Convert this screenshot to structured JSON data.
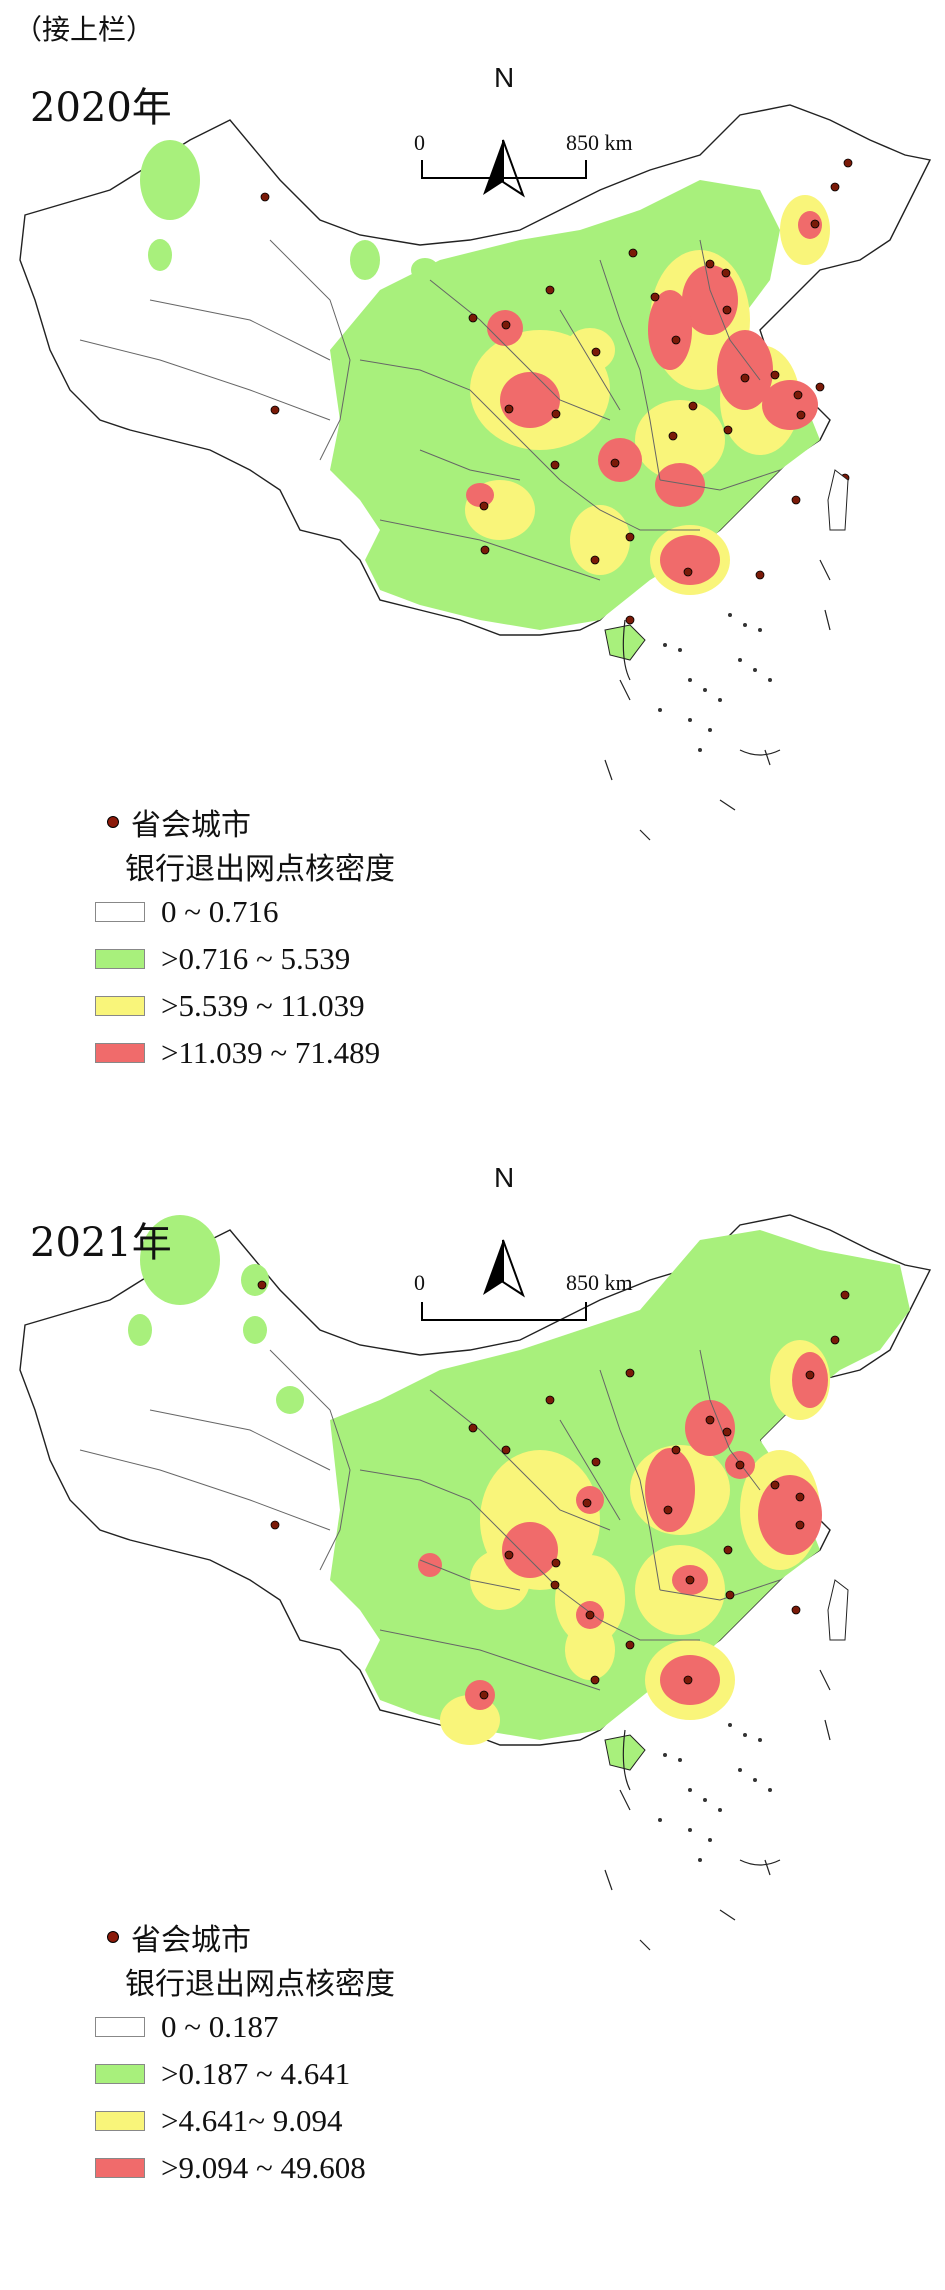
{
  "continuation_note": "（接上栏）",
  "panels": [
    {
      "year_label": "2020年",
      "north_label": "N",
      "scale": {
        "start": "0",
        "end": "850 km"
      },
      "legend": {
        "point_label": "省会城市",
        "title": "银行退出网点核密度",
        "classes": [
          {
            "label": "0 ~ 0.716",
            "color": "#ffffff"
          },
          {
            "label": ">0.716 ~ 5.539",
            "color": "#a8f07c"
          },
          {
            "label": ">5.539 ~ 11.039",
            "color": "#f9f57a"
          },
          {
            "label": ">11.039 ~ 71.489",
            "color": "#f06b6b"
          }
        ]
      }
    },
    {
      "year_label": "2021年",
      "north_label": "N",
      "scale": {
        "start": "0",
        "end": "850 km"
      },
      "legend": {
        "point_label": "省会城市",
        "title": "银行退出网点核密度",
        "classes": [
          {
            "label": "0 ~ 0.187",
            "color": "#ffffff"
          },
          {
            "label": ">0.187 ~ 4.641",
            "color": "#a8f07c"
          },
          {
            "label": ">4.641~ 9.094",
            "color": "#f9f57a"
          },
          {
            "label": ">9.094 ~ 49.608",
            "color": "#f06b6b"
          }
        ]
      }
    }
  ]
}
